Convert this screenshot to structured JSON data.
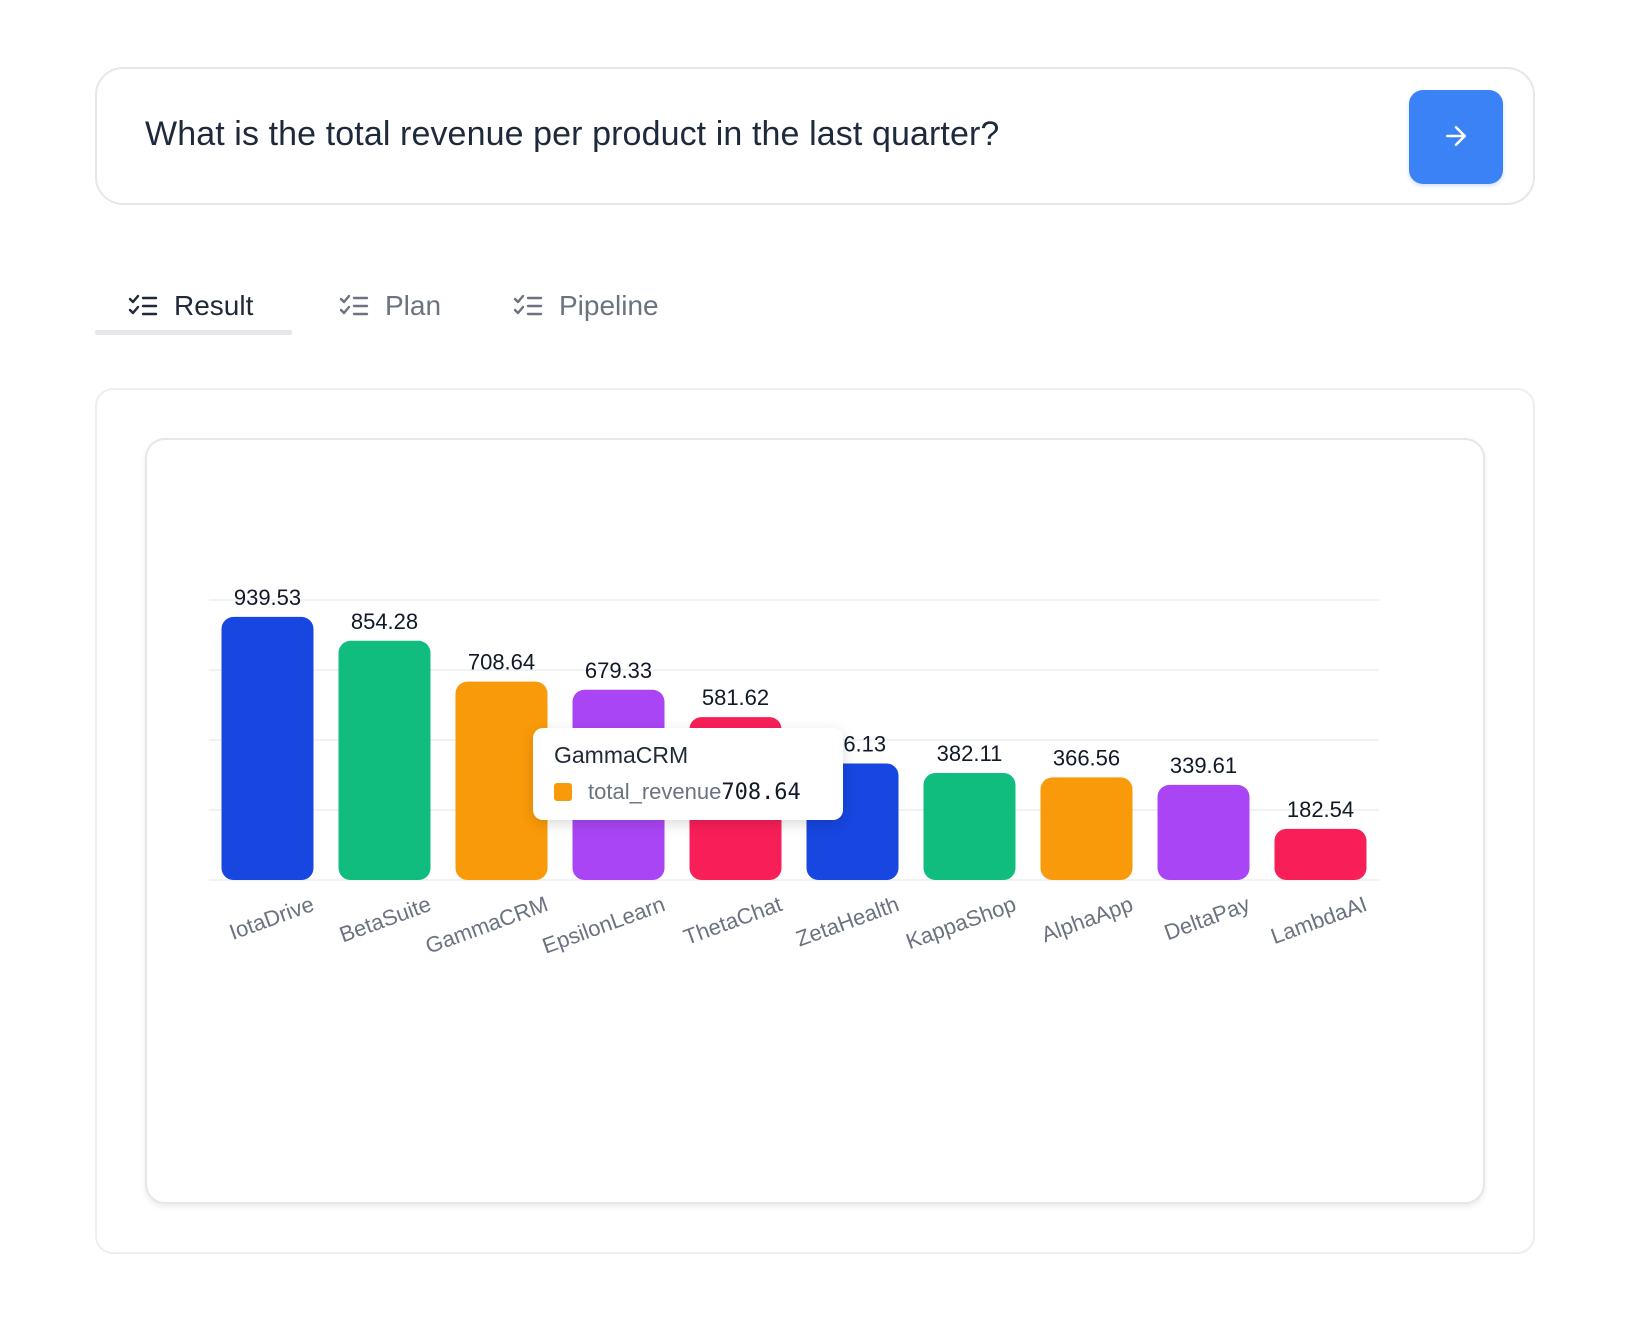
{
  "query": {
    "text": "What is the total revenue per product in the last quarter?",
    "submit_icon": "arrow-right-icon"
  },
  "tabs": [
    {
      "label": "Result",
      "icon": "checklist-icon",
      "active": true
    },
    {
      "label": "Plan",
      "icon": "checklist-icon",
      "active": false
    },
    {
      "label": "Pipeline",
      "icon": "checklist-icon",
      "active": false
    }
  ],
  "colors": {
    "accent": "#3b82f6",
    "palette": [
      "#1746e0",
      "#10bd7f",
      "#f99a0a",
      "#a945f5",
      "#f81f58"
    ]
  },
  "chart_data": {
    "type": "bar",
    "categories": [
      "IotaDrive",
      "BetaSuite",
      "GammaCRM",
      "EpsilonLearn",
      "ThetaChat",
      "ZetaHealth",
      "KappaShop",
      "AlphaApp",
      "DeltaPay",
      "LambdaAI"
    ],
    "series": [
      {
        "name": "total_revenue",
        "values": [
          939.53,
          854.28,
          708.64,
          679.33,
          581.62,
          416.13,
          382.11,
          366.56,
          339.61,
          182.54
        ]
      }
    ],
    "value_labels": [
      "939.53",
      "854.28",
      "708.64",
      "679.33",
      "581.62",
      "416.13",
      "382.11",
      "366.56",
      "339.61",
      "182.54"
    ],
    "ylim": [
      0,
      1000
    ],
    "grid": true,
    "title": "",
    "xlabel": "",
    "ylabel": ""
  },
  "tooltip": {
    "title": "GammaCRM",
    "series_name": "total_revenue",
    "value": "708.64",
    "color": "#f99a0a"
  }
}
